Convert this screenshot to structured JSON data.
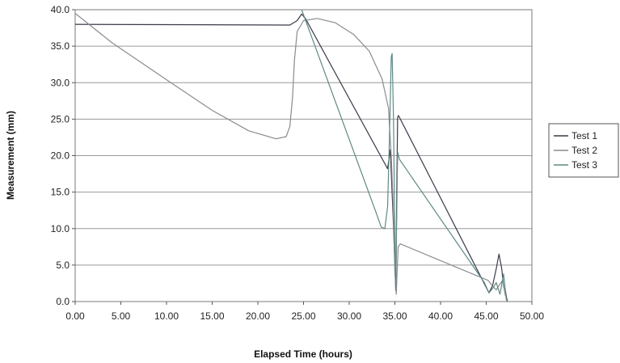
{
  "chart_data": {
    "type": "line",
    "title": "",
    "xlabel": "Elapsed Time (hours)",
    "ylabel": "Measurement (mm)",
    "xlim": [
      0,
      50
    ],
    "ylim": [
      0,
      40
    ],
    "x_ticks": [
      "0.00",
      "5.00",
      "10.00",
      "15.00",
      "20.00",
      "25.00",
      "30.00",
      "35.00",
      "40.00",
      "45.00",
      "50.00"
    ],
    "y_ticks": [
      "0.0",
      "5.0",
      "10.0",
      "15.0",
      "20.0",
      "25.0",
      "30.0",
      "35.0",
      "40.0"
    ],
    "grid": "horizontal",
    "legend_position": "right",
    "series": [
      {
        "name": "Test 1",
        "color": "#3a3a4a",
        "points": [
          [
            0,
            38
          ],
          [
            23.5,
            37.9
          ],
          [
            24.3,
            38.5
          ],
          [
            24.8,
            39.4
          ],
          [
            25.2,
            38.8
          ],
          [
            34.2,
            18.2
          ],
          [
            34.5,
            20.8
          ],
          [
            34.8,
            12
          ],
          [
            35.0,
            5
          ],
          [
            35.1,
            1.5
          ],
          [
            35.2,
            15
          ],
          [
            35.3,
            25.3
          ],
          [
            35.4,
            25.5
          ],
          [
            45.3,
            1.2
          ],
          [
            45.7,
            2.2
          ],
          [
            46.1,
            4.5
          ],
          [
            46.4,
            6.5
          ],
          [
            46.7,
            4.5
          ],
          [
            46.9,
            2
          ],
          [
            47.1,
            1.5
          ],
          [
            47.3,
            0
          ]
        ]
      },
      {
        "name": "Test 2",
        "color": "#8a8a92",
        "points": [
          [
            0,
            39.5
          ],
          [
            4,
            35.5
          ],
          [
            10,
            30.4
          ],
          [
            15,
            26.2
          ],
          [
            19,
            23.4
          ],
          [
            22,
            22.3
          ],
          [
            23.1,
            22.6
          ],
          [
            23.5,
            24
          ],
          [
            23.8,
            28
          ],
          [
            24.0,
            33
          ],
          [
            24.3,
            37
          ],
          [
            25,
            38.5
          ],
          [
            26.5,
            38.8
          ],
          [
            28.5,
            38.2
          ],
          [
            30.5,
            36.6
          ],
          [
            32.2,
            34.3
          ],
          [
            33.6,
            30.5
          ],
          [
            34.3,
            26.5
          ],
          [
            34.6,
            20
          ],
          [
            34.8,
            14
          ],
          [
            35.0,
            4
          ],
          [
            35.15,
            1
          ],
          [
            35.35,
            7.5
          ],
          [
            35.6,
            7.9
          ],
          [
            45.2,
            2.9
          ],
          [
            45.7,
            2.1
          ],
          [
            46.1,
            1.6
          ],
          [
            46.4,
            2.2
          ],
          [
            46.8,
            2.9
          ],
          [
            47.1,
            0.8
          ]
        ]
      },
      {
        "name": "Test 3",
        "color": "#5f8a84",
        "points": [
          [
            24.8,
            40
          ],
          [
            33,
            12
          ],
          [
            33.5,
            10.2
          ],
          [
            33.9,
            10
          ],
          [
            34.2,
            13
          ],
          [
            34.4,
            22
          ],
          [
            34.6,
            33.5
          ],
          [
            34.7,
            34
          ],
          [
            34.85,
            25
          ],
          [
            35.0,
            8
          ],
          [
            35.1,
            1.5
          ],
          [
            35.2,
            12
          ],
          [
            35.3,
            20.5
          ],
          [
            35.5,
            19.5
          ],
          [
            44.8,
            2.6
          ],
          [
            45.3,
            1.2
          ],
          [
            45.7,
            1.8
          ],
          [
            46.1,
            2.6
          ],
          [
            46.5,
            1
          ],
          [
            46.9,
            3.8
          ],
          [
            47.2,
            0.2
          ]
        ]
      }
    ]
  }
}
